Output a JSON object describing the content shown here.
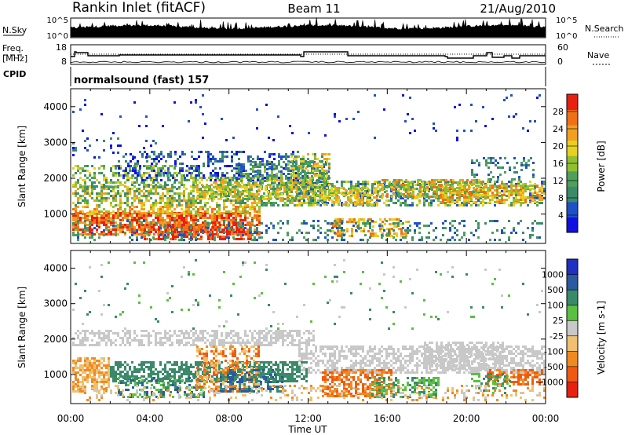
{
  "header": {
    "station": "Rankin Inlet (fitACF)",
    "beam": "Beam 11",
    "date": "21/Aug/2010"
  },
  "noise_panel": {
    "left_label": "N.Sky",
    "right_label": "N.Search",
    "left_ticks": [
      "10^5",
      "10^0"
    ],
    "right_ticks": [
      "10^5",
      "10^0"
    ]
  },
  "freq_panel": {
    "left_label_line1": "Freq.",
    "left_label_line2": "[MHz]",
    "right_label": "Nave",
    "left_ticks": [
      "18",
      "8"
    ],
    "right_ticks": [
      "60",
      "0"
    ]
  },
  "cpid_panel": {
    "label": "CPID",
    "program": "normalsound (fast) 157"
  },
  "colors": {
    "power": [
      "#1010e0",
      "#2050c8",
      "#3a8a6a",
      "#4ea05a",
      "#90c030",
      "#e8d020",
      "#f0a020",
      "#f07018",
      "#e82010"
    ],
    "velocity": [
      "#e82010",
      "#f05a10",
      "#f08a20",
      "#f0c070",
      "#c8c8c8",
      "#5ac040",
      "#3a8a6a",
      "#2a5aa0",
      "#2030c0"
    ]
  },
  "chart_data": [
    {
      "type": "heatmap",
      "title": "",
      "xlabel": "",
      "ylabel": "Slant Range [km]",
      "xlim": [
        "00:00",
        "00:00"
      ],
      "ylim": [
        180,
        4500
      ],
      "x_tick_labels": [
        "00:00",
        "04:00",
        "08:00",
        "12:00",
        "16:00",
        "20:00",
        "00:00"
      ],
      "y_tick_labels": [
        "1000",
        "2000",
        "3000",
        "4000"
      ],
      "y_ticks": [
        1000,
        2000,
        3000,
        4000
      ],
      "colorbar": {
        "label": "Power [dB]",
        "tick_labels": [
          "4",
          "8",
          "12",
          "16",
          "20",
          "24",
          "28"
        ],
        "ticks": [
          4,
          8,
          12,
          16,
          20,
          24,
          28
        ],
        "range": [
          0,
          32
        ]
      }
    },
    {
      "type": "heatmap",
      "title": "",
      "xlabel": "Time UT",
      "ylabel": "Slant Range [km]",
      "xlim": [
        "00:00",
        "00:00"
      ],
      "ylim": [
        180,
        4500
      ],
      "x_tick_labels": [
        "00:00",
        "04:00",
        "08:00",
        "12:00",
        "16:00",
        "20:00",
        "00:00"
      ],
      "y_tick_labels": [
        "1000",
        "2000",
        "3000",
        "4000"
      ],
      "y_ticks": [
        1000,
        2000,
        3000,
        4000
      ],
      "colorbar": {
        "label": "Velocity [m s-1]",
        "tick_labels": [
          "1000",
          "500",
          "100",
          "25",
          "-25",
          "-100",
          "-500",
          "-1000"
        ]
      }
    }
  ]
}
